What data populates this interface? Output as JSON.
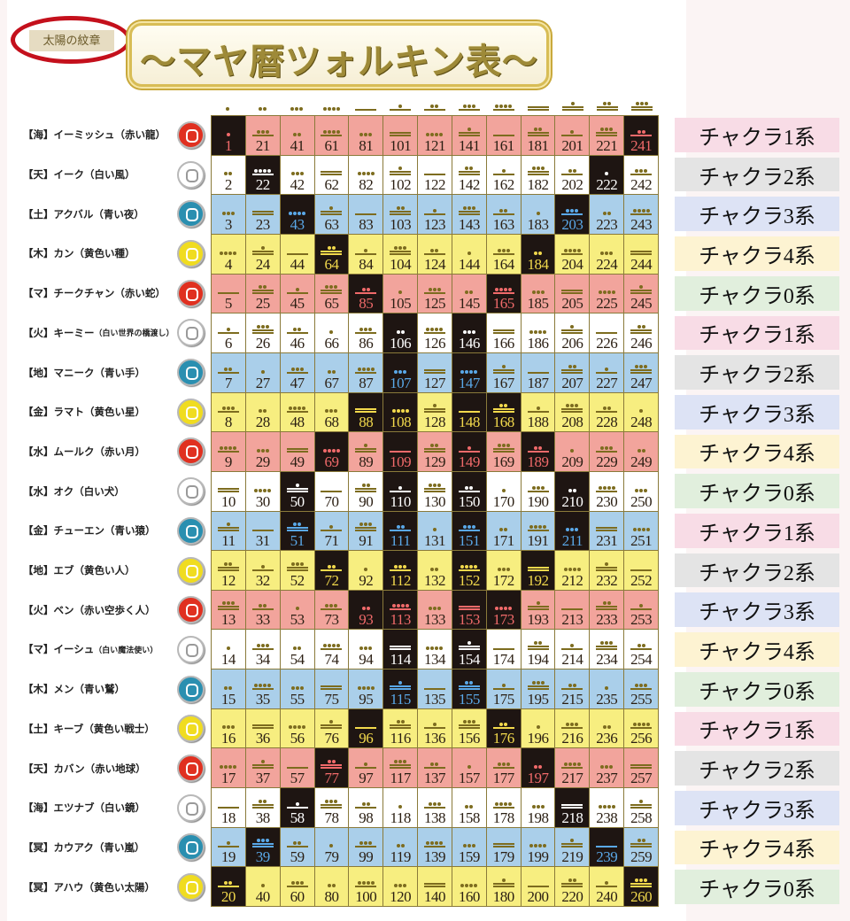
{
  "header": {
    "seal_label": "太陽の紋章",
    "title": "～マヤ暦ツォルキン表～"
  },
  "column_tones": [
    1,
    2,
    3,
    4,
    5,
    6,
    7,
    8,
    9,
    10,
    11,
    12,
    13
  ],
  "colors": {
    "red": "#f2a49c",
    "white": "#ffffff",
    "blue": "#aacfea",
    "yellow": "#f7ee80",
    "portal": "#1e1512",
    "glyph": "#7d6c1f",
    "portal_text": {
      "red": "#f06a6a",
      "white": "#ffffff",
      "blue": "#5aa8e8",
      "yellow": "#f2d94c"
    },
    "seal": {
      "red": "#e03020",
      "white": "#ffffff",
      "blue": "#2a8fb0",
      "yellow": "#f0dc20"
    },
    "chakra": {
      "1": "#f8dce6",
      "2": "#e4e4e4",
      "3": "#dde3f5",
      "4": "#fdf3d2",
      "0": "#e1efdd"
    }
  },
  "rows": [
    {
      "element": "【海】",
      "name": "イーミッシュ",
      "meaning": "（赤い龍）",
      "color": "red",
      "chakra": "チャクラ1系",
      "chakra_no": "1",
      "cells": [
        1,
        21,
        41,
        61,
        81,
        101,
        121,
        141,
        161,
        181,
        201,
        221,
        241
      ],
      "portals": [
        1,
        241
      ]
    },
    {
      "element": "【天】",
      "name": "イーク",
      "meaning": "（白い風）",
      "color": "white",
      "chakra": "チャクラ2系",
      "chakra_no": "2",
      "cells": [
        2,
        22,
        42,
        62,
        82,
        102,
        122,
        142,
        162,
        182,
        202,
        222,
        242
      ],
      "portals": [
        22,
        222
      ]
    },
    {
      "element": "【土】",
      "name": "アクバル",
      "meaning": "（青い夜）",
      "color": "blue",
      "chakra": "チャクラ3系",
      "chakra_no": "3",
      "cells": [
        3,
        23,
        43,
        63,
        83,
        103,
        123,
        143,
        163,
        183,
        203,
        223,
        243
      ],
      "portals": [
        43,
        203
      ]
    },
    {
      "element": "【木】",
      "name": "カン",
      "meaning": "（黄色い種）",
      "color": "yellow",
      "chakra": "チャクラ4系",
      "chakra_no": "4",
      "cells": [
        4,
        24,
        44,
        64,
        84,
        104,
        124,
        144,
        164,
        184,
        204,
        224,
        244
      ],
      "portals": [
        64,
        184
      ]
    },
    {
      "element": "【マ】",
      "name": "チークチャン",
      "meaning": "（赤い蛇）",
      "color": "red",
      "chakra": "チャクラ0系",
      "chakra_no": "0",
      "cells": [
        5,
        25,
        45,
        65,
        85,
        105,
        125,
        145,
        165,
        185,
        205,
        225,
        245
      ],
      "portals": [
        85,
        165
      ]
    },
    {
      "element": "【火】",
      "name": "キーミー",
      "meaning": "（白い世界の橋渡し）",
      "color": "white",
      "chakra": "チャクラ1系",
      "chakra_no": "1",
      "cells": [
        6,
        26,
        46,
        66,
        86,
        106,
        126,
        146,
        166,
        186,
        206,
        226,
        246
      ],
      "portals": [
        106,
        146
      ],
      "small": true
    },
    {
      "element": "【地】",
      "name": "マニーク",
      "meaning": "（青い手）",
      "color": "blue",
      "chakra": "チャクラ2系",
      "chakra_no": "2",
      "cells": [
        7,
        27,
        47,
        67,
        87,
        107,
        127,
        147,
        167,
        187,
        207,
        227,
        247
      ],
      "portals": [
        107,
        147
      ]
    },
    {
      "element": "【金】",
      "name": "ラマト",
      "meaning": "（黄色い星）",
      "color": "yellow",
      "chakra": "チャクラ3系",
      "chakra_no": "3",
      "cells": [
        8,
        28,
        48,
        68,
        88,
        108,
        128,
        148,
        168,
        188,
        208,
        228,
        248
      ],
      "portals": [
        88,
        108,
        148,
        168
      ]
    },
    {
      "element": "【水】",
      "name": "ムールク",
      "meaning": "（赤い月）",
      "color": "red",
      "chakra": "チャクラ4系",
      "chakra_no": "4",
      "cells": [
        9,
        29,
        49,
        69,
        89,
        109,
        129,
        149,
        169,
        189,
        209,
        229,
        249
      ],
      "portals": [
        69,
        109,
        149,
        189
      ]
    },
    {
      "element": "【水】",
      "name": "オク",
      "meaning": "（白い犬）",
      "color": "white",
      "chakra": "チャクラ0系",
      "chakra_no": "0",
      "cells": [
        10,
        30,
        50,
        70,
        90,
        110,
        130,
        150,
        170,
        190,
        210,
        230,
        250
      ],
      "portals": [
        50,
        110,
        150,
        210
      ]
    },
    {
      "element": "【金】",
      "name": "チューエン",
      "meaning": "（青い猿）",
      "color": "blue",
      "chakra": "チャクラ1系",
      "chakra_no": "1",
      "cells": [
        11,
        31,
        51,
        71,
        91,
        111,
        131,
        151,
        171,
        191,
        211,
        231,
        251
      ],
      "portals": [
        51,
        111,
        151,
        211
      ]
    },
    {
      "element": "【地】",
      "name": "エブ",
      "meaning": "（黄色い人）",
      "color": "yellow",
      "chakra": "チャクラ2系",
      "chakra_no": "2",
      "cells": [
        12,
        32,
        52,
        72,
        92,
        112,
        132,
        152,
        172,
        192,
        212,
        232,
        252
      ],
      "portals": [
        72,
        112,
        152,
        192
      ]
    },
    {
      "element": "【火】",
      "name": "ベン",
      "meaning": "（赤い空歩く人）",
      "color": "red",
      "chakra": "チャクラ3系",
      "chakra_no": "3",
      "cells": [
        13,
        33,
        53,
        73,
        93,
        113,
        133,
        153,
        173,
        193,
        213,
        233,
        253
      ],
      "portals": [
        93,
        113,
        153,
        173
      ]
    },
    {
      "element": "【マ】",
      "name": "イーシュ",
      "meaning": "（白い魔法使い）",
      "color": "white",
      "chakra": "チャクラ4系",
      "chakra_no": "4",
      "cells": [
        14,
        34,
        54,
        74,
        94,
        114,
        134,
        154,
        174,
        194,
        214,
        234,
        254
      ],
      "portals": [
        114,
        154
      ],
      "small": true
    },
    {
      "element": "【木】",
      "name": "メン",
      "meaning": "（青い鷲）",
      "color": "blue",
      "chakra": "チャクラ0系",
      "chakra_no": "0",
      "cells": [
        15,
        35,
        55,
        75,
        95,
        115,
        135,
        155,
        175,
        195,
        215,
        235,
        255
      ],
      "portals": [
        115,
        155
      ]
    },
    {
      "element": "【土】",
      "name": "キーブ",
      "meaning": "（黄色い戦士）",
      "color": "yellow",
      "chakra": "チャクラ1系",
      "chakra_no": "1",
      "cells": [
        16,
        36,
        56,
        76,
        96,
        116,
        136,
        156,
        176,
        196,
        216,
        236,
        256
      ],
      "portals": [
        96,
        176
      ]
    },
    {
      "element": "【天】",
      "name": "カバン",
      "meaning": "（赤い地球）",
      "color": "red",
      "chakra": "チャクラ2系",
      "chakra_no": "2",
      "cells": [
        17,
        37,
        57,
        77,
        97,
        117,
        137,
        157,
        177,
        197,
        217,
        237,
        257
      ],
      "portals": [
        77,
        197
      ]
    },
    {
      "element": "【海】",
      "name": "エツナブ",
      "meaning": "（白い鏡）",
      "color": "white",
      "chakra": "チャクラ3系",
      "chakra_no": "3",
      "cells": [
        18,
        38,
        58,
        78,
        98,
        118,
        138,
        158,
        178,
        198,
        218,
        238,
        258
      ],
      "portals": [
        58,
        218
      ]
    },
    {
      "element": "【冥】",
      "name": "カウアク",
      "meaning": "（青い嵐）",
      "color": "blue",
      "chakra": "チャクラ4系",
      "chakra_no": "4",
      "cells": [
        19,
        39,
        59,
        79,
        99,
        119,
        139,
        159,
        179,
        199,
        219,
        239,
        259
      ],
      "portals": [
        39,
        239
      ]
    },
    {
      "element": "【冥】",
      "name": "アハウ",
      "meaning": "（黄色い太陽）",
      "color": "yellow",
      "chakra": "チャクラ0系",
      "chakra_no": "0",
      "cells": [
        20,
        40,
        60,
        80,
        100,
        120,
        140,
        160,
        180,
        200,
        220,
        240,
        260
      ],
      "portals": [
        20,
        260
      ]
    }
  ]
}
